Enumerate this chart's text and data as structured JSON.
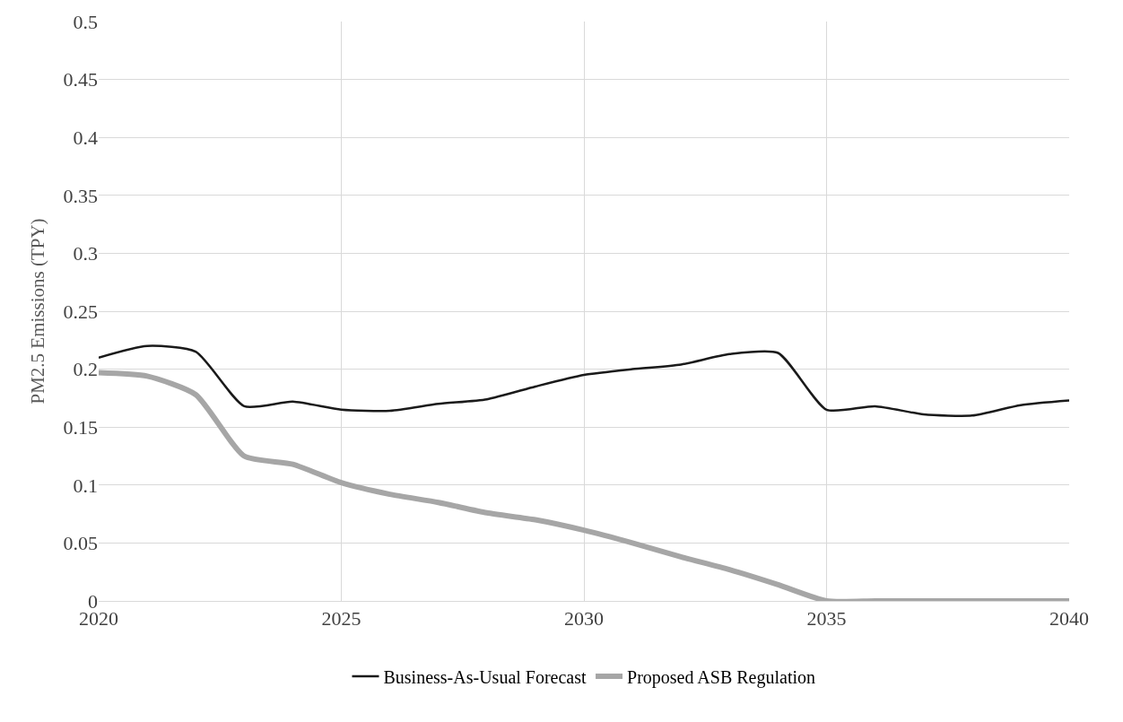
{
  "chart_data": {
    "type": "line",
    "ylabel": "PM2.5 Emissions (TPY)",
    "x": [
      2020,
      2021,
      2022,
      2023,
      2024,
      2025,
      2026,
      2027,
      2028,
      2029,
      2030,
      2031,
      2032,
      2033,
      2034,
      2035,
      2036,
      2037,
      2038,
      2039,
      2040
    ],
    "series": [
      {
        "name": "Business-As-Usual Forecast",
        "color": "#1a1a1a",
        "values": [
          0.21,
          0.22,
          0.215,
          0.168,
          0.172,
          0.165,
          0.164,
          0.17,
          0.174,
          0.185,
          0.195,
          0.2,
          0.204,
          0.213,
          0.214,
          0.165,
          0.168,
          0.161,
          0.16,
          0.169,
          0.173
        ]
      },
      {
        "name": "Proposed ASB Regulation",
        "color": "#a6a6a6",
        "values": [
          0.197,
          0.194,
          0.178,
          0.125,
          0.118,
          0.102,
          0.092,
          0.085,
          0.076,
          0.07,
          0.061,
          0.05,
          0.038,
          0.027,
          0.014,
          0,
          0,
          0,
          0,
          0,
          0
        ]
      }
    ],
    "xlim": [
      2020,
      2040
    ],
    "xticks": [
      2020,
      2025,
      2030,
      2035,
      2040
    ],
    "ylim": [
      0,
      0.5
    ],
    "yticks": [
      0,
      0.05,
      0.1,
      0.15,
      0.2,
      0.25,
      0.3,
      0.35,
      0.4,
      0.45,
      0.5
    ],
    "grid": true,
    "legend": "bottom",
    "marker": "none",
    "line_style": "solid"
  }
}
